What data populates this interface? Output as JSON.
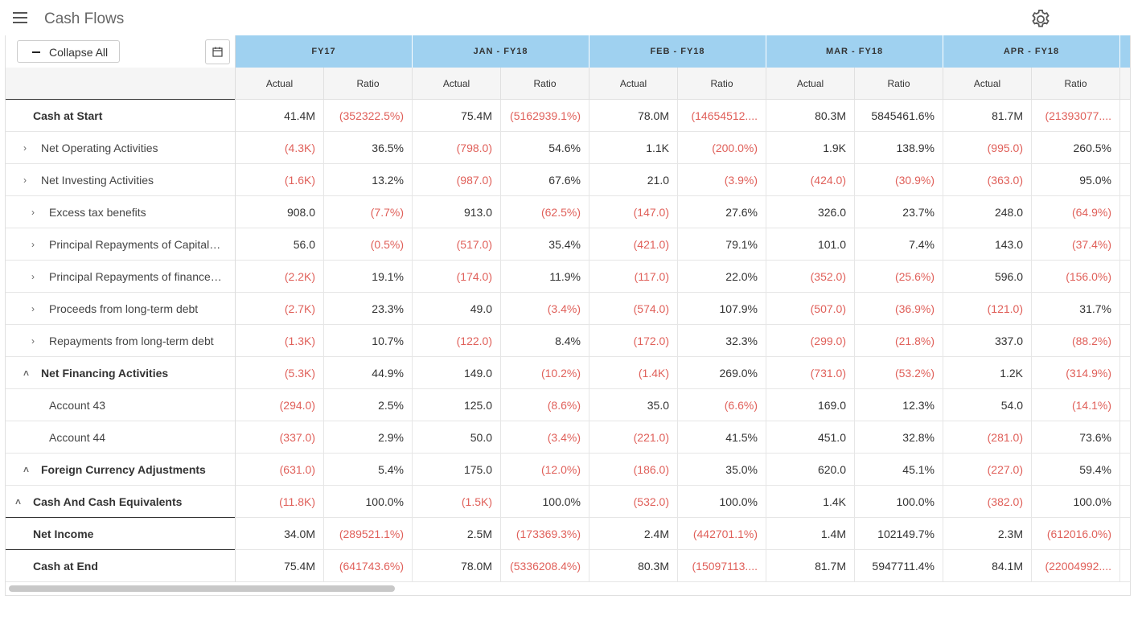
{
  "header": {
    "title": "Cash Flows"
  },
  "toolbar": {
    "collapse_label": "Collapse All"
  },
  "periods": [
    "FY17",
    "JAN - FY18",
    "FEB - FY18",
    "MAR - FY18",
    "APR - FY18"
  ],
  "subcolumns": [
    "Actual",
    "Ratio"
  ],
  "rows": [
    {
      "label": "Cash at Start",
      "indent": 0,
      "bold": true,
      "chevron": "",
      "sep": false,
      "values": [
        "41.4M",
        "(352322.5%)",
        "75.4M",
        "(5162939.1%)",
        "78.0M",
        "(14654512....",
        "80.3M",
        "5845461.6%",
        "81.7M",
        "(21393077...."
      ]
    },
    {
      "label": "Net Operating Activities",
      "indent": 1,
      "bold": false,
      "chevron": "›",
      "sep": false,
      "values": [
        "(4.3K)",
        "36.5%",
        "(798.0)",
        "54.6%",
        "1.1K",
        "(200.0%)",
        "1.9K",
        "138.9%",
        "(995.0)",
        "260.5%"
      ]
    },
    {
      "label": "Net Investing Activities",
      "indent": 1,
      "bold": false,
      "chevron": "›",
      "sep": false,
      "values": [
        "(1.6K)",
        "13.2%",
        "(987.0)",
        "67.6%",
        "21.0",
        "(3.9%)",
        "(424.0)",
        "(30.9%)",
        "(363.0)",
        "95.0%"
      ]
    },
    {
      "label": "Excess tax benefits",
      "indent": 2,
      "bold": false,
      "chevron": "›",
      "sep": false,
      "values": [
        "908.0",
        "(7.7%)",
        "913.0",
        "(62.5%)",
        "(147.0)",
        "27.6%",
        "326.0",
        "23.7%",
        "248.0",
        "(64.9%)"
      ]
    },
    {
      "label": "Principal Repayments of Capital…",
      "indent": 2,
      "bold": false,
      "chevron": "›",
      "sep": false,
      "values": [
        "56.0",
        "(0.5%)",
        "(517.0)",
        "35.4%",
        "(421.0)",
        "79.1%",
        "101.0",
        "7.4%",
        "143.0",
        "(37.4%)"
      ]
    },
    {
      "label": "Principal Repayments of finance…",
      "indent": 2,
      "bold": false,
      "chevron": "›",
      "sep": false,
      "values": [
        "(2.2K)",
        "19.1%",
        "(174.0)",
        "11.9%",
        "(117.0)",
        "22.0%",
        "(352.0)",
        "(25.6%)",
        "596.0",
        "(156.0%)"
      ]
    },
    {
      "label": "Proceeds from long-term debt",
      "indent": 2,
      "bold": false,
      "chevron": "›",
      "sep": false,
      "values": [
        "(2.7K)",
        "23.3%",
        "49.0",
        "(3.4%)",
        "(574.0)",
        "107.9%",
        "(507.0)",
        "(36.9%)",
        "(121.0)",
        "31.7%"
      ]
    },
    {
      "label": "Repayments from long-term debt",
      "indent": 2,
      "bold": false,
      "chevron": "›",
      "sep": false,
      "values": [
        "(1.3K)",
        "10.7%",
        "(122.0)",
        "8.4%",
        "(172.0)",
        "32.3%",
        "(299.0)",
        "(21.8%)",
        "337.0",
        "(88.2%)"
      ]
    },
    {
      "label": "Net Financing Activities",
      "indent": 1,
      "bold": true,
      "chevron": "˄",
      "sep": false,
      "values": [
        "(5.3K)",
        "44.9%",
        "149.0",
        "(10.2%)",
        "(1.4K)",
        "269.0%",
        "(731.0)",
        "(53.2%)",
        "1.2K",
        "(314.9%)"
      ]
    },
    {
      "label": "Account 43",
      "indent": 2,
      "bold": false,
      "chevron": "",
      "sep": false,
      "values": [
        "(294.0)",
        "2.5%",
        "125.0",
        "(8.6%)",
        "35.0",
        "(6.6%)",
        "169.0",
        "12.3%",
        "54.0",
        "(14.1%)"
      ]
    },
    {
      "label": "Account 44",
      "indent": 2,
      "bold": false,
      "chevron": "",
      "sep": false,
      "values": [
        "(337.0)",
        "2.9%",
        "50.0",
        "(3.4%)",
        "(221.0)",
        "41.5%",
        "451.0",
        "32.8%",
        "(281.0)",
        "73.6%"
      ]
    },
    {
      "label": "Foreign Currency Adjustments",
      "indent": 1,
      "bold": true,
      "chevron": "˄",
      "sep": false,
      "values": [
        "(631.0)",
        "5.4%",
        "175.0",
        "(12.0%)",
        "(186.0)",
        "35.0%",
        "620.0",
        "45.1%",
        "(227.0)",
        "59.4%"
      ]
    },
    {
      "label": "Cash And Cash Equivalents",
      "indent": 0,
      "bold": true,
      "chevron": "˄",
      "sep": true,
      "values": [
        "(11.8K)",
        "100.0%",
        "(1.5K)",
        "100.0%",
        "(532.0)",
        "100.0%",
        "1.4K",
        "100.0%",
        "(382.0)",
        "100.0%"
      ]
    },
    {
      "label": "Net Income",
      "indent": 0,
      "bold": true,
      "chevron": "",
      "sep": true,
      "values": [
        "34.0M",
        "(289521.1%)",
        "2.5M",
        "(173369.3%)",
        "2.4M",
        "(442701.1%)",
        "1.4M",
        "102149.7%",
        "2.3M",
        "(612016.0%)"
      ]
    },
    {
      "label": "Cash at End",
      "indent": 0,
      "bold": true,
      "chevron": "",
      "sep": false,
      "values": [
        "75.4M",
        "(641743.6%)",
        "78.0M",
        "(5336208.4%)",
        "80.3M",
        "(15097113....",
        "81.7M",
        "5947711.4%",
        "84.1M",
        "(22004992...."
      ]
    }
  ],
  "colors": {
    "header_bg": "#9fd1f0",
    "negative": "#e0605a"
  }
}
